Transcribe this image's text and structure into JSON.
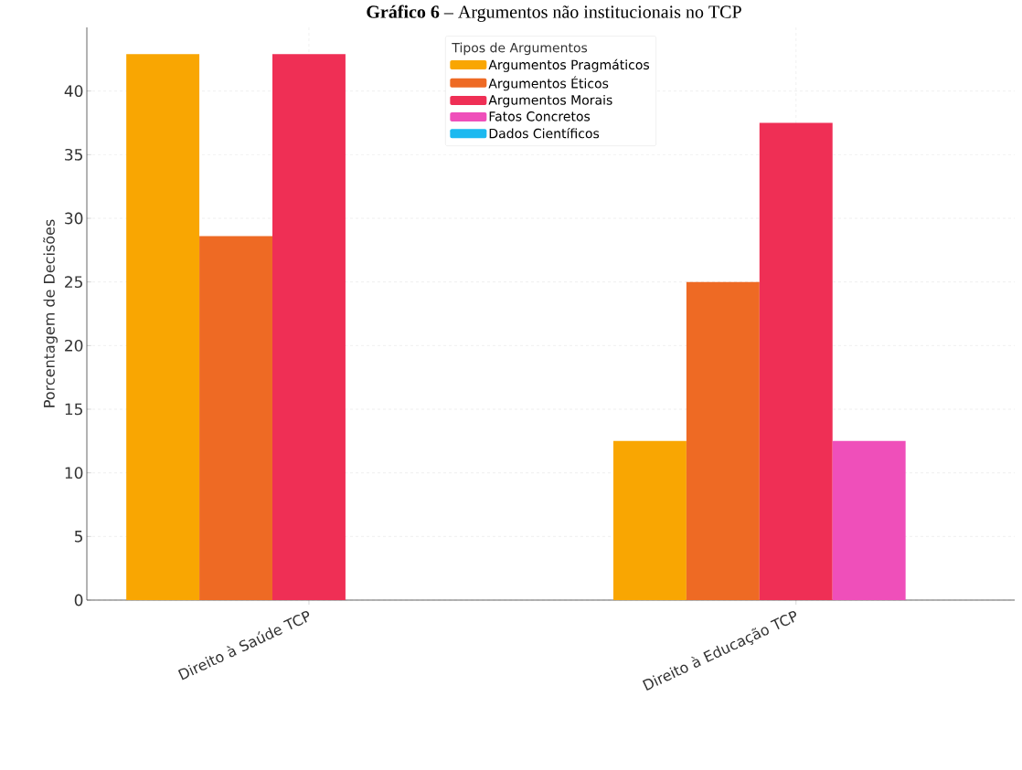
{
  "chart_data": {
    "type": "bar",
    "title": "**Gráfico 6** – Argumentos não institucionais no TCP",
    "ylabel": "Porcentagem de Decisões",
    "legend_title": "Tipos de Argumentos",
    "categories": [
      "Direito à Saúde TCP",
      "Direito à Educação TCP"
    ],
    "series": [
      {
        "name": "Argumentos Pragmáticos",
        "color": "#f9a602",
        "values": [
          42.9,
          12.5
        ]
      },
      {
        "name": "Argumentos Éticos",
        "color": "#ee6a24",
        "values": [
          28.6,
          25
        ]
      },
      {
        "name": "Argumentos Morais",
        "color": "#ef2f55",
        "values": [
          42.9,
          37.5
        ]
      },
      {
        "name": "Fatos Concretos",
        "color": "#ef4fba",
        "values": [
          0,
          12.5
        ]
      },
      {
        "name": "Dados Científicos",
        "color": "#1cb9f0",
        "values": [
          0,
          0
        ]
      }
    ],
    "ylim": [
      0,
      45
    ],
    "yticks": [
      0,
      5,
      10,
      15,
      20,
      25,
      30,
      35,
      40
    ],
    "grid": true,
    "legend": "top"
  }
}
